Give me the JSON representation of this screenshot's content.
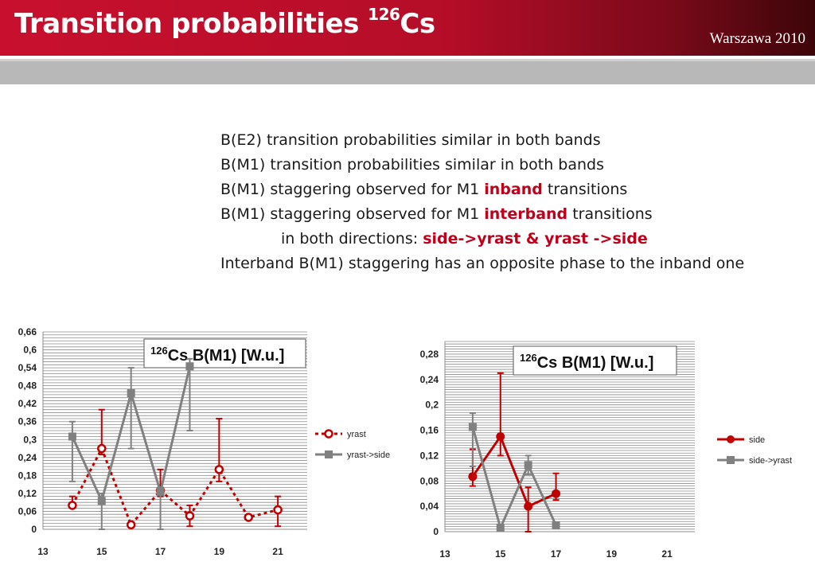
{
  "header": {
    "title_main": "Transition probabilities ",
    "title_sup": "126",
    "title_tail": "Cs",
    "venue": "Warszawa 2010"
  },
  "bullets": {
    "l1": "B(E2) transition probabilities similar in both bands",
    "l2": "B(M1) transition probabilities similar in both bands",
    "l3_a": "B(M1) staggering observed for M1 ",
    "l3_b": "inband",
    "l3_c": " transitions",
    "l4_a": "B(M1) staggering observed for M1 ",
    "l4_b": "interband",
    "l4_c": " transitions",
    "l5_a": "in both directions: ",
    "l5_b": "side->yrast & yrast ->side",
    "l6": "Interband B(M1) staggering has an opposite phase to the inband one"
  },
  "chart_data": [
    {
      "type": "line",
      "title_sup": "126",
      "title": "Cs B(M1) [W.u.]",
      "x_ticks": [
        13,
        15,
        17,
        19,
        21
      ],
      "y_ticks": [
        "0",
        "0,06",
        "0,12",
        "0,18",
        "0,24",
        "0,3",
        "0,36",
        "0,42",
        "0,48",
        "0,54",
        "0,6",
        "0,66"
      ],
      "xlim": [
        13,
        22
      ],
      "ylim": [
        0,
        0.66
      ],
      "grid": true,
      "legend": "right",
      "series": [
        {
          "name": "yrast",
          "color": "#c00000",
          "style": "dotted",
          "marker": "open-circle",
          "x": [
            14,
            15,
            16,
            17,
            18,
            19,
            20,
            21
          ],
          "y": [
            0.08,
            0.27,
            0.015,
            0.13,
            0.045,
            0.2,
            0.04,
            0.065
          ],
          "err_hi": [
            0.11,
            0.4,
            0.015,
            0.2,
            0.08,
            0.37,
            0.04,
            0.11
          ],
          "err_lo": [
            0.08,
            0.25,
            0.015,
            0.11,
            0.01,
            0.16,
            0.04,
            0.01
          ]
        },
        {
          "name": "yrast->side",
          "color": "#808080",
          "style": "solid",
          "marker": "square",
          "x": [
            14,
            15,
            16,
            17,
            18
          ],
          "y": [
            0.31,
            0.095,
            0.455,
            0.125,
            0.545
          ],
          "err_hi": [
            0.36,
            0.12,
            0.54,
            0.14,
            0.57
          ],
          "err_lo": [
            0.16,
            0.0,
            0.27,
            0.0,
            0.33
          ]
        }
      ]
    },
    {
      "type": "line",
      "title_sup": "126",
      "title": "Cs B(M1) [W.u.]",
      "x_ticks": [
        13,
        15,
        17,
        19,
        21
      ],
      "y_ticks": [
        "0",
        "0,04",
        "0,08",
        "0,12",
        "0,16",
        "0,2",
        "0,24",
        "0,28"
      ],
      "xlim": [
        13,
        22
      ],
      "ylim": [
        0,
        0.3
      ],
      "grid": true,
      "legend": "right",
      "series": [
        {
          "name": "side",
          "color": "#c00000",
          "style": "solid",
          "marker": "filled-circle",
          "x": [
            14,
            15,
            16,
            17
          ],
          "y": [
            0.087,
            0.15,
            0.04,
            0.06
          ],
          "err_hi": [
            0.13,
            0.25,
            0.07,
            0.092
          ],
          "err_lo": [
            0.072,
            0.12,
            0.0,
            0.05
          ]
        },
        {
          "name": "side->yrast",
          "color": "#808080",
          "style": "solid",
          "marker": "square",
          "x": [
            14,
            15,
            16,
            17
          ],
          "y": [
            0.165,
            0.006,
            0.105,
            0.01
          ],
          "err_hi": [
            0.187,
            0.006,
            0.12,
            0.01
          ],
          "err_lo": [
            0.103,
            0.006,
            0.09,
            0.01
          ]
        }
      ]
    }
  ]
}
